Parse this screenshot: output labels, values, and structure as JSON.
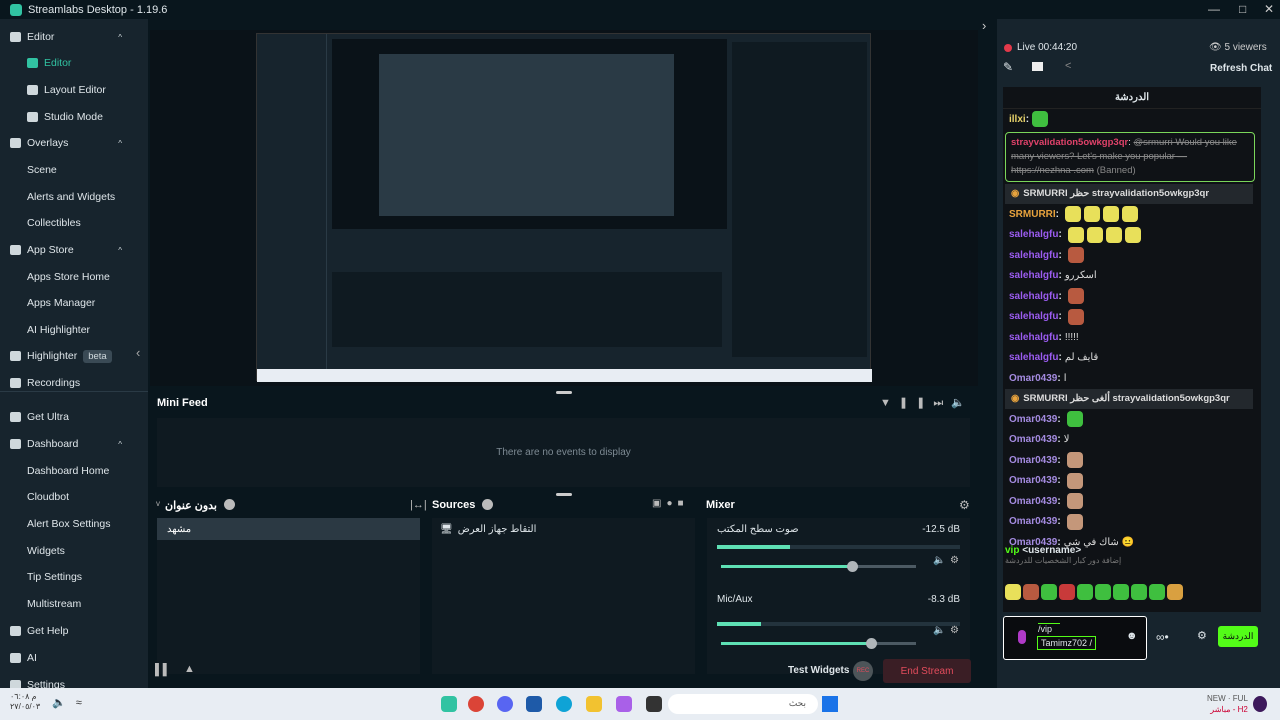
{
  "app": {
    "title": "Streamlabs Desktop - 1.19.6"
  },
  "sidebar": {
    "items": [
      {
        "label": "Editor",
        "kind": "top",
        "caret": true
      },
      {
        "label": "Editor",
        "kind": "sub",
        "icon": "editor-icon",
        "active": true
      },
      {
        "label": "Layout Editor",
        "kind": "sub",
        "icon": "layout-icon"
      },
      {
        "label": "Studio Mode",
        "kind": "sub",
        "icon": "studio-mode-icon"
      },
      {
        "label": "Overlays",
        "kind": "top",
        "caret": true
      },
      {
        "label": "Scene",
        "kind": "sub"
      },
      {
        "label": "Alerts and Widgets",
        "kind": "sub"
      },
      {
        "label": "Collectibles",
        "kind": "sub"
      },
      {
        "label": "App Store",
        "kind": "top",
        "caret": true
      },
      {
        "label": "Apps Store Home",
        "kind": "sub"
      },
      {
        "label": "Apps Manager",
        "kind": "sub"
      },
      {
        "label": "AI Highlighter",
        "kind": "sub"
      },
      {
        "label": "Highlighter",
        "kind": "top",
        "badge": "beta"
      },
      {
        "label": "Recordings",
        "kind": "top"
      },
      {
        "label": "Get Ultra",
        "kind": "top"
      },
      {
        "label": "Dashboard",
        "kind": "top",
        "caret": true
      },
      {
        "label": "Dashboard Home",
        "kind": "sub"
      },
      {
        "label": "Cloudbot",
        "kind": "sub"
      },
      {
        "label": "Alert Box Settings",
        "kind": "sub"
      },
      {
        "label": "Widgets",
        "kind": "sub"
      },
      {
        "label": "Tip Settings",
        "kind": "sub"
      },
      {
        "label": "Multistream",
        "kind": "sub"
      },
      {
        "label": "Get Help",
        "kind": "top"
      },
      {
        "label": "AI",
        "kind": "top"
      },
      {
        "label": "Settings",
        "kind": "top"
      }
    ]
  },
  "minifeed": {
    "title": "Mini Feed",
    "empty": "There are no events to display"
  },
  "scenes": {
    "title": "بدون عنوان",
    "items": [
      "مشهد"
    ]
  },
  "sources": {
    "title": "Sources",
    "items": [
      "التقاط جهاز العرض"
    ]
  },
  "mixer": {
    "title": "Mixer",
    "channels": [
      {
        "name": "صوت سطح المكتب",
        "db": "-12.5 dB",
        "level": 0.3,
        "volume": 0.67
      },
      {
        "name": "Mic/Aux",
        "db": "-8.3 dB",
        "level": 0.18,
        "volume": 0.77
      }
    ]
  },
  "footer": {
    "test_widgets": "Test Widgets",
    "rec": "REC",
    "end_stream": "End Stream"
  },
  "chat": {
    "live": "Live 00:44:20",
    "viewers": "5 viewers",
    "refresh": "Refresh Chat",
    "tab_title": "الدردشة",
    "banned": {
      "user": "strayvalidation5owkgp3qr",
      "text": "@srmurri Would you like many viewers? Let's make you popular — https://nezhna .com",
      "tag": "(Banned)"
    },
    "messages": [
      {
        "type": "sys",
        "text": "SRMURRI حظر strayvalidation5owkgp3qr"
      },
      {
        "user": "SRMURRI",
        "color": "#e8a33d",
        "text": "",
        "emotes": 4,
        "emote_color": "#e8e05a"
      },
      {
        "user": "salehalgfu",
        "color": "#9b5cf0",
        "text": "",
        "emotes": 4,
        "emote_color": "#e8e05a"
      },
      {
        "user": "salehalgfu",
        "color": "#9b5cf0",
        "text": "",
        "emotes": 1,
        "emote_color": "#b85a40"
      },
      {
        "user": "salehalgfu",
        "color": "#9b5cf0",
        "text": "اسكررو",
        "emotes": 0
      },
      {
        "user": "salehalgfu",
        "color": "#9b5cf0",
        "text": "",
        "emotes": 1,
        "emote_color": "#b85a40"
      },
      {
        "user": "salehalgfu",
        "color": "#9b5cf0",
        "text": "",
        "emotes": 1,
        "emote_color": "#b85a40"
      },
      {
        "user": "salehalgfu",
        "color": "#9b5cf0",
        "text": "!!!!!",
        "emotes": 0
      },
      {
        "user": "salehalgfu",
        "color": "#9b5cf0",
        "text": "قايف لم",
        "emotes": 0
      },
      {
        "user": "Omar0439",
        "color": "#a48be0",
        "text": "ا",
        "emotes": 0
      },
      {
        "type": "sys",
        "text": "SRMURRI ألغى حظر strayvalidation5owkgp3qr"
      },
      {
        "user": "Omar0439",
        "color": "#a48be0",
        "text": "",
        "emotes": 1,
        "emote_color": "#3fbf3f"
      },
      {
        "user": "Omar0439",
        "color": "#a48be0",
        "text": "لا",
        "emotes": 0
      },
      {
        "user": "Omar0439",
        "color": "#a48be0",
        "text": "",
        "emotes": 1,
        "emote_color": "#c4977a"
      },
      {
        "user": "Omar0439",
        "color": "#a48be0",
        "text": "",
        "emotes": 1,
        "emote_color": "#c4977a"
      },
      {
        "user": "Omar0439",
        "color": "#a48be0",
        "text": "",
        "emotes": 1,
        "emote_color": "#c4977a"
      },
      {
        "user": "Omar0439",
        "color": "#a48be0",
        "text": "",
        "emotes": 1,
        "emote_color": "#c4977a"
      },
      {
        "user": "Omar0439",
        "color": "#a48be0",
        "text": "شاك في شي 😐",
        "emotes": 0
      }
    ],
    "first": {
      "user": "illxi",
      "color": "#e8d36a"
    },
    "command": {
      "name": "vip",
      "arg": "<username>",
      "desc": "إضافة دور كبار الشخصيات للدردشة"
    },
    "emote_bar": [
      "#e8e05a",
      "#b85a40",
      "#3fbf3f",
      "#c83a3a",
      "#3fbf3f",
      "#3fbf3f",
      "#3fbf3f",
      "#3fbf3f",
      "#3fbf3f",
      "#d9a040"
    ],
    "input": {
      "line1": "/vip",
      "line2": "Tamimz702 /"
    },
    "send": "الدردشة"
  },
  "taskbar": {
    "time": "م ٠٦:٠٨",
    "date": "٢٧/٠٥/٠٣",
    "search": "بحث",
    "news_title": "NEW · FUL",
    "news_sub": "مباشر - H2"
  },
  "colors": {
    "accent": "#31c3a2",
    "send": "#53fc18",
    "end_stream": "#e34c5c"
  }
}
